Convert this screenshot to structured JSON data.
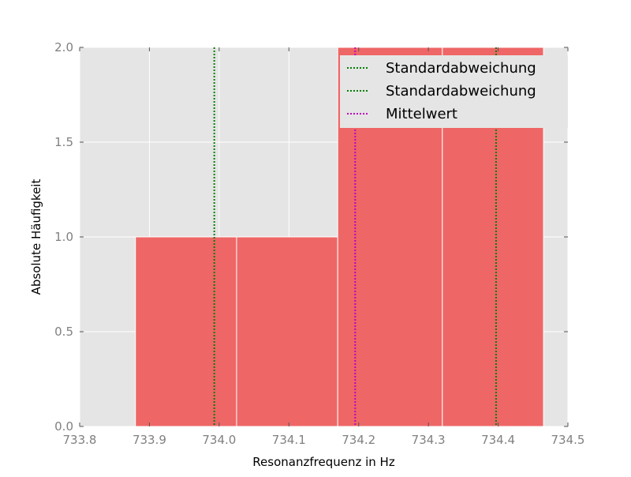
{
  "chart_data": {
    "type": "bar",
    "subtype": "histogram",
    "xlabel": "Resonanzfrequenz in Hz",
    "ylabel": "Absolute Häufigkeit",
    "xlim": [
      733.8,
      734.5
    ],
    "ylim": [
      0.0,
      2.0
    ],
    "x_ticks": [
      "733.8",
      "733.9",
      "734.0",
      "734.1",
      "734.2",
      "734.3",
      "734.4",
      "734.5"
    ],
    "y_ticks": [
      "0.0",
      "0.5",
      "1.0",
      "1.5",
      "2.0"
    ],
    "grid": true,
    "legend_position": "upper-right",
    "bins": [
      {
        "start": 733.88,
        "end": 734.025,
        "count": 1
      },
      {
        "start": 734.025,
        "end": 734.17,
        "count": 1
      },
      {
        "start": 734.17,
        "end": 734.32,
        "count": 2
      },
      {
        "start": 734.32,
        "end": 734.465,
        "count": 2
      }
    ],
    "bar_color": "#ee6666",
    "lines": [
      {
        "label": "Standardabweichung",
        "x": 733.993,
        "color": "#008000",
        "style": "dotted"
      },
      {
        "label": "Standardabweichung",
        "x": 734.397,
        "color": "#008000",
        "style": "dotted"
      },
      {
        "label": "Mittelwert",
        "x": 734.195,
        "color": "#bf00bf",
        "style": "dotted"
      }
    ]
  }
}
